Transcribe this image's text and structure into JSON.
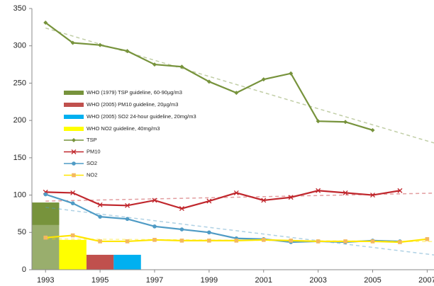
{
  "chart_data": {
    "type": "line",
    "x": [
      1993,
      1994,
      1995,
      1996,
      1997,
      1998,
      1999,
      2000,
      2001,
      2002,
      2003,
      2004,
      2005,
      2006,
      2007
    ],
    "xlim": [
      1992.5,
      2007.25
    ],
    "xticks": [
      1993,
      1995,
      1997,
      1999,
      2001,
      2003,
      2005,
      2007
    ],
    "ylim": [
      0,
      350
    ],
    "yticks": [
      0,
      50,
      100,
      150,
      200,
      250,
      300,
      350
    ],
    "guidelines": [
      {
        "name": "WHO (1979) TSP guideline, 60-90µg/m3",
        "color": "#77933c",
        "x": 1993,
        "low": 60,
        "value": 90
      },
      {
        "name": "WHO (2005) PM10 guideline, 20µg/m3",
        "color": "#c0504d",
        "x": 1995,
        "value": 20
      },
      {
        "name": "WHO (2005) SO2 24-hour guideline, 20mg/m3",
        "color": "#00b0f0",
        "x": 1996,
        "value": 20
      },
      {
        "name": "WHO NO2 guideline, 40mg/m3",
        "color": "#ffff00",
        "x": 1994,
        "value": 40
      }
    ],
    "series": [
      {
        "name": "TSP",
        "color": "#77933c",
        "marker": "diamond",
        "values": [
          331,
          304,
          301,
          293,
          275,
          272,
          252,
          237,
          255,
          263,
          199,
          198,
          187,
          null,
          null
        ]
      },
      {
        "name": "PM10",
        "color": "#c0272d",
        "marker": "cross",
        "values": [
          104,
          103,
          87,
          86,
          93,
          82,
          92,
          103,
          93,
          97,
          106,
          103,
          100,
          106,
          null
        ]
      },
      {
        "name": "SO2",
        "color": "#4f9bc5",
        "marker": "circle",
        "values": [
          101,
          89,
          71,
          68,
          58,
          54,
          50,
          42,
          41,
          37,
          38,
          37,
          39,
          38,
          null
        ]
      },
      {
        "name": "NO2",
        "color": "#ffe600",
        "marker": "square",
        "values": [
          43,
          46,
          38,
          38,
          40,
          39,
          39,
          39,
          40,
          39,
          38,
          38,
          38,
          37,
          41
        ]
      }
    ]
  }
}
